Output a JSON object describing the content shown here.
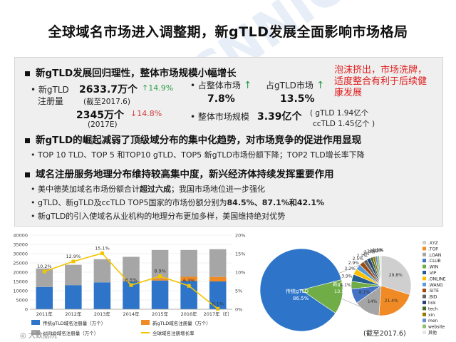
{
  "title": "全球域名市场进入调整期，新gTLD发展全面影响市场格局",
  "section1": {
    "heading": "新gTLD发展回归理性，整体市场规模小幅增长",
    "reg_label_line1": "新gTLD",
    "reg_label_line2": "注册量",
    "reg_value_2017": "2633.7万个",
    "reg_growth_2017": "14.9%",
    "reg_date_2017": "(截至2017.6)",
    "reg_value_prev": "2345万个",
    "reg_growth_prev": "14.8%",
    "reg_date_prev": "(2017E)",
    "share_label": "占整体市场",
    "share_value": "7.8%",
    "gtld_share_label": "占gTLD市场",
    "gtld_share_value": "13.5%",
    "market_size_label": "整体市场规模",
    "market_size_value": "3.39亿个",
    "gtld_size": "( gTLD 1.94亿个",
    "cctld_size": "ccTLD 1.45亿个 )",
    "note": "泡沫挤出，市场洗牌，适度整合有利于后续健康发展"
  },
  "section2": {
    "heading": "新gTLD的崛起减弱了顶级域分布的集中化趋势，对市场竞争的促进作用显现",
    "bullet": "TOP 10 TLD、TOP 5 和TOP10 gTLD、TOP5 新gTLD市场份额下降；TOP2 TLD增长率下降"
  },
  "section3": {
    "heading": "域名注册服务地理分布维持较高集中度，新兴经济体持续发挥重要作用",
    "bullet1_a": "美中德英加域名市场份额合计",
    "bullet1_b": "超过六成",
    "bullet1_c": "；我国市场地位进一步强化",
    "bullet2_a": "gTLD、新gTLD及ccTLD TOP5国家的市场份额分别为",
    "bullet2_b": "84.5%、87.1%和42.1%",
    "bullet3": "新gTLD的引入使域名从业机构的地理分布更加多样，美国维持绝对优势"
  },
  "bar_chart": {
    "legend": [
      "传统gTLD域名注册量（万个）",
      "新gTLD域名注册量（万个）",
      "ccTLD域名注册量（万个）",
      "全球域名注册增长率"
    ],
    "colors": {
      "traditional": "#2e75c9",
      "new": "#f08a24",
      "cctld": "#a6a6a6",
      "growth": "#f5c400"
    }
  },
  "chart_data": [
    {
      "type": "bar",
      "categories": [
        "2011年",
        "2012年",
        "2013年",
        "2014年",
        "2015年",
        "2016年",
        "2017年（E）"
      ],
      "series": [
        {
          "name": "传统gTLD域名注册量（万个）",
          "values": [
            12000,
            13000,
            14500,
            15000,
            15500,
            15300,
            15000
          ]
        },
        {
          "name": "新gTLD域名注册量（万个）",
          "values": [
            0,
            0,
            0,
            300,
            1000,
            2200,
            2400
          ]
        },
        {
          "name": "ccTLD域名注册量（万个）",
          "values": [
            10000,
            11000,
            12500,
            13000,
            15500,
            14500,
            15000
          ]
        }
      ],
      "line_series": {
        "name": "全球域名注册增长率",
        "values": [
          10.2,
          12.9,
          15.1,
          6.5,
          8.9,
          6.3,
          0.1
        ]
      },
      "data_labels": [
        "10.2%",
        "12.9%",
        "15.1%",
        "6.5%",
        "8.9%",
        "6.3%",
        "0.1%"
      ],
      "y_left_ticks": [
        "0",
        "5000",
        "10000",
        "15000",
        "20000",
        "25000",
        "30000",
        "35000",
        "40000"
      ],
      "y_right_ticks": [
        "0%",
        "5%",
        "10%",
        "15%",
        "20%"
      ],
      "ylim": [
        0,
        40000
      ],
      "y2lim": [
        0,
        20
      ]
    },
    {
      "type": "pie",
      "inner_labels": [
        {
          "label": "传统gTLD",
          "value": "86.5%"
        },
        {
          "label": "新gTLD",
          "value": "13.5%"
        }
      ],
      "outer_values": [
        {
          "label": "其他",
          "value": 29.8
        },
        {
          "label": ".TOP",
          "value": 21.4
        },
        {
          "label": ".XYZ",
          "value": 14
        },
        {
          "label": ".LOAN",
          "value": 8.1
        },
        {
          "label": ".CLUB",
          "value": 4.1
        },
        {
          "label": ".WIN",
          "value": 3.9
        },
        {
          "label": ".VIP",
          "value": 3.2
        },
        {
          "label": ".ONLINE",
          "value": 2.9
        },
        {
          "label": ".WANG",
          "value": 2.5
        },
        {
          "label": ".SITE",
          "value": 2.1
        },
        {
          "label": ".BID",
          "value": 2
        },
        {
          "label": "link",
          "value": 1.4
        },
        {
          "label": "tech",
          "value": 1.3
        },
        {
          "label": "xin",
          "value": 1.2
        },
        {
          "label": "men",
          "value": 1.1
        },
        {
          "label": "website",
          "value": 1
        },
        {
          "label": "其他",
          "value": 0
        }
      ],
      "legend": [
        ".XYZ",
        ".TOP",
        ".LOAN",
        ".CLUB",
        ".WIN",
        ".VIP",
        ".ONLINE",
        ".WANG",
        ".SITE",
        ".BID",
        "link",
        "tech",
        "xin",
        "men",
        "website",
        "其他"
      ],
      "footnote": "(截至2017.6)"
    }
  ],
  "watermark": "CNNIC",
  "footer_logo": "大数据院"
}
